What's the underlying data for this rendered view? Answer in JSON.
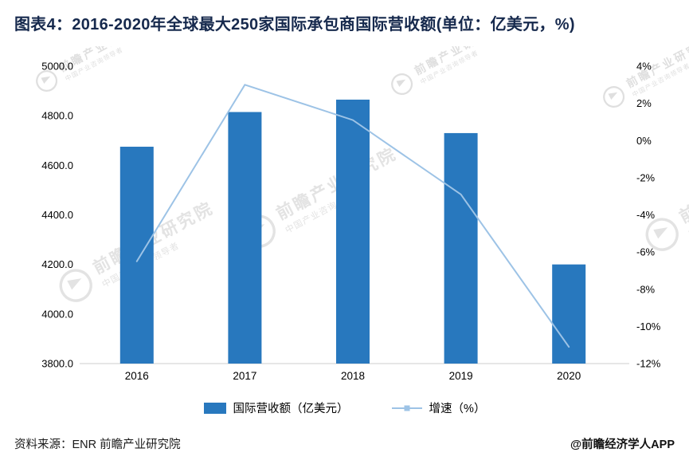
{
  "title": "图表4：2016-2020年全球最大250家国际承包商国际营收额(单位：亿美元，%)",
  "chart_data": {
    "type": "bar",
    "subtype": "bar+line combo, dual axis",
    "categories": [
      "2016",
      "2017",
      "2018",
      "2019",
      "2020"
    ],
    "series": [
      {
        "name": "国际营收额（亿美元）",
        "type": "bar",
        "axis": "left",
        "color": "#2878be",
        "values": [
          4675,
          4815,
          4865,
          4730,
          4200
        ]
      },
      {
        "name": "增速（%）",
        "type": "line",
        "axis": "right",
        "color": "#9dc3e6",
        "values": [
          -6.5,
          3.0,
          1.1,
          -2.9,
          -11.1
        ]
      }
    ],
    "left_axis": {
      "min": 3800,
      "max": 5000,
      "step": 200,
      "ticks": [
        "5000.0",
        "4800.0",
        "4600.0",
        "4400.0",
        "4200.0",
        "4000.0",
        "3800.0"
      ]
    },
    "right_axis": {
      "min": -12,
      "max": 4,
      "step": 2,
      "ticks": [
        "4%",
        "2%",
        "0%",
        "-2%",
        "-4%",
        "-6%",
        "-8%",
        "-10%",
        "-12%"
      ]
    },
    "xlabel": "",
    "ylabel": "",
    "grid": false,
    "legend_position": "bottom",
    "axis_line_color": "#cccccc",
    "tick_font_color": "#000000"
  },
  "watermark": {
    "line1": "前瞻产业研究院",
    "line2": "中国产业咨询领导者"
  },
  "footer": {
    "source": "资料来源：ENR 前瞻产业研究院",
    "credit": "@前瞻经济学人APP"
  }
}
